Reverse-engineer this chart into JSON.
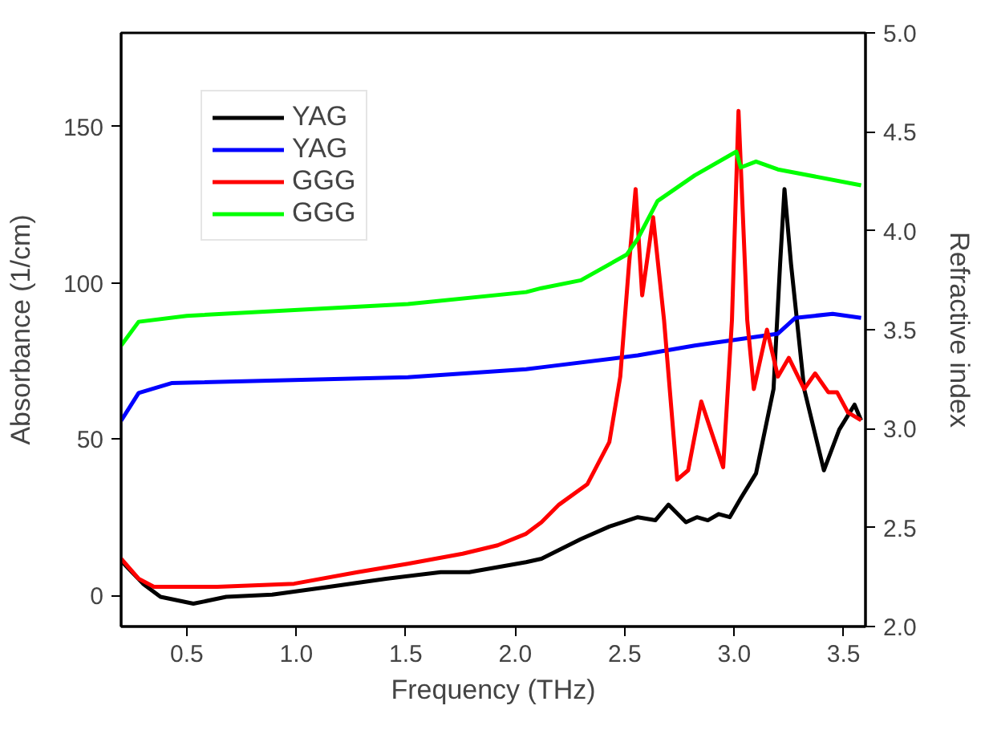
{
  "chart_data": {
    "type": "line",
    "xlabel": "Frequency (THz)",
    "ylabel": "Absorbance (1/cm)",
    "y2label": "Refractive index",
    "xlim": [
      0.2,
      3.6
    ],
    "xticks": [
      0.5,
      {
        "value": 1,
        "label": "1.0"
      },
      1.5,
      {
        "value": 2,
        "label": "2.0"
      },
      2.5,
      {
        "value": 3,
        "label": "3.0"
      },
      3.5
    ],
    "ylim": [
      -10,
      180
    ],
    "yticks": [
      0,
      50,
      100,
      150
    ],
    "y2lim": [
      2.0,
      5.0
    ],
    "y2ticks": [
      {
        "value": 2,
        "label": "2.0"
      },
      2.5,
      {
        "value": 3,
        "label": "3.0"
      },
      3.5,
      {
        "value": 4,
        "label": "4.0"
      },
      4.5,
      {
        "value": 5,
        "label": "5.0"
      }
    ],
    "legend": "top left",
    "grid": false,
    "series": [
      {
        "name": "YAG",
        "color": "#000000",
        "x": [
          0.2,
          0.3,
          0.38,
          0.53,
          0.68,
          0.89,
          1.15,
          1.41,
          1.66,
          1.79,
          1.92,
          2.05,
          2.12,
          2.3,
          2.43,
          2.56,
          2.64,
          2.7,
          2.78,
          2.83,
          2.88,
          2.93,
          2.98,
          3.03,
          3.1,
          3.18,
          3.21,
          3.23,
          3.26,
          3.32,
          3.41,
          3.48,
          3.55,
          3.58
        ],
        "values": [
          11,
          3.7,
          -0.5,
          -2.7,
          -0.5,
          0.2,
          2.7,
          5.3,
          7.4,
          7.4,
          9,
          10.6,
          11.7,
          18,
          22,
          25,
          24,
          29,
          23.4,
          25,
          24,
          26,
          25,
          31,
          39,
          66,
          106,
          130,
          106,
          66,
          40,
          53,
          61,
          56
        ]
      },
      {
        "name": "YAG",
        "color": "#0000ff",
        "axis": "y2",
        "x": [
          0.2,
          0.28,
          0.43,
          1.51,
          2.05,
          2.12,
          2.56,
          2.82,
          3.2,
          3.28,
          3.45,
          3.58
        ],
        "values": [
          3.04,
          3.18,
          3.23,
          3.26,
          3.3,
          3.31,
          3.37,
          3.42,
          3.48,
          3.56,
          3.58,
          3.56
        ]
      },
      {
        "name": "GGG",
        "color": "#ff0000",
        "x": [
          0.2,
          0.28,
          0.35,
          0.64,
          0.99,
          1.28,
          1.51,
          1.76,
          1.92,
          2.05,
          2.12,
          2.2,
          2.33,
          2.43,
          2.48,
          2.52,
          2.55,
          2.58,
          2.63,
          2.68,
          2.74,
          2.79,
          2.85,
          2.95,
          2.99,
          3.02,
          3.06,
          3.09,
          3.15,
          3.2,
          3.25,
          3.32,
          3.37,
          3.43,
          3.47,
          3.52,
          3.58
        ],
        "values": [
          11.7,
          5.3,
          2.7,
          2.7,
          3.7,
          7.4,
          10.1,
          13.3,
          16,
          19.7,
          23.4,
          29,
          35.6,
          49,
          70,
          106,
          130,
          96,
          121,
          88,
          37,
          40,
          62,
          41,
          88,
          155,
          88,
          66,
          85,
          70,
          76,
          66,
          71,
          65,
          65,
          58.5,
          56
        ]
      },
      {
        "name": "GGG",
        "color": "#00ff00",
        "axis": "y2",
        "x": [
          0.2,
          0.28,
          0.5,
          1.51,
          2.05,
          2.12,
          2.3,
          2.51,
          2.56,
          2.65,
          2.82,
          3.01,
          3.03,
          3.1,
          3.2,
          3.58
        ],
        "values": [
          3.42,
          3.54,
          3.57,
          3.63,
          3.69,
          3.71,
          3.75,
          3.88,
          3.96,
          4.15,
          4.28,
          4.4,
          4.32,
          4.35,
          4.31,
          4.23
        ]
      }
    ]
  }
}
